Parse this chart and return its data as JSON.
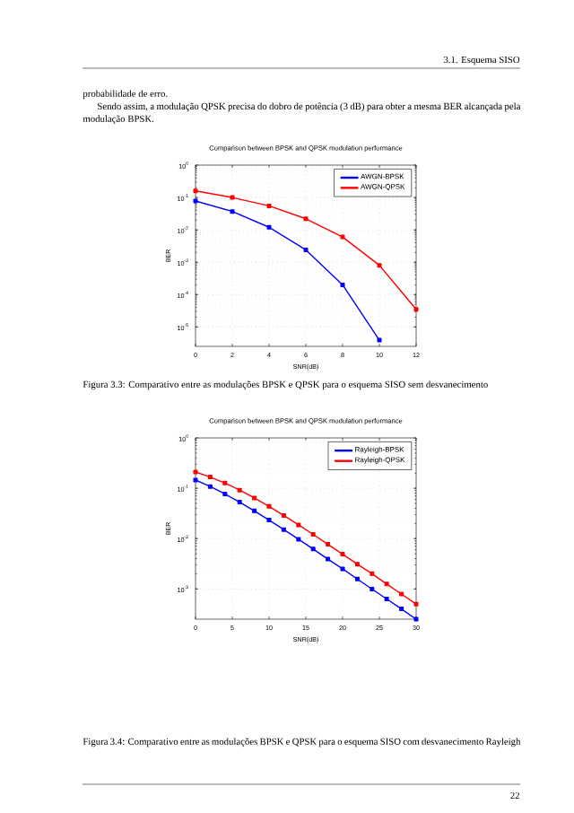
{
  "chart_data": [
    {
      "type": "line",
      "title": "Comparison between BPSK and QPSK modulation performance",
      "xlabel": "SNR(dB)",
      "ylabel": "BER",
      "annotations": [
        "3.1. Esquema SISO",
        "probabilidade de erro.",
        "Sendo assim, a modulação QPSK precisa do dobro de potência (3 dB) para obter a mesma BER alcançada pela modulação BPSK.",
        "Figura 3.3: Comparativo entre as modulações BPSK e QPSK para o esquema SISO sem desvanecimento"
      ],
      "x": [
        0,
        2,
        4,
        6,
        8,
        10,
        12
      ],
      "series": [
        {
          "name": "AWGN-BPSK",
          "color": "#0000ff",
          "x": [
            0,
            2,
            4,
            6,
            8,
            10
          ],
          "values": [
            0.078,
            0.037,
            0.012,
            0.0024,
            0.0002,
            3.9e-06
          ]
        },
        {
          "name": "AWGN-QPSK",
          "color": "#ff0000",
          "values": [
            0.16,
            0.1,
            0.055,
            0.022,
            0.006,
            0.0008,
            3.5e-05
          ]
        }
      ],
      "log": "y",
      "xlim": [
        0,
        12
      ],
      "xticks": [
        0,
        2,
        4,
        6,
        8,
        10,
        12
      ],
      "ylim": [
        2.5e-06,
        1
      ],
      "yticks": [
        {
          "value": 1e-05,
          "label": "10$^{-5}$"
        },
        {
          "value": 0.0001,
          "label": "10$^{-4}$"
        },
        {
          "value": 0.001,
          "label": "10$^{-3}$"
        },
        {
          "value": 0.01,
          "label": "10$^{-2}$"
        },
        {
          "value": 0.1,
          "label": "10$^{-1}$"
        },
        {
          "value": 1,
          "label": "10$^{0}$"
        }
      ],
      "grid": true,
      "legend": "top right",
      "marker": "square",
      "line_style": "solid"
    },
    {
      "type": "line",
      "title": "Comparison between BPSK and QPSK modulation performance",
      "xlabel": "SNR(dB)",
      "ylabel": "BER",
      "annotations": [
        "Figura 3.4: Comparativo entre as modulações BPSK e QPSK para o esquema SISO com desvanecimento Rayleigh",
        "22"
      ],
      "x": [
        0,
        2,
        4,
        6,
        8,
        10,
        12,
        14,
        16,
        18,
        20,
        22,
        24,
        26,
        28,
        30
      ],
      "series": [
        {
          "name": "Rayleigh-BPSK",
          "color": "#0000ff",
          "values": [
            0.146,
            0.108,
            0.077,
            0.053,
            0.0355,
            0.0233,
            0.0151,
            0.0097,
            0.0062,
            0.0039,
            0.0025,
            0.00157,
            0.00099,
            0.00063,
            0.0004,
            0.00025
          ]
        },
        {
          "name": "Rayleigh-QPSK",
          "color": "#ff0000",
          "values": [
            0.21,
            0.167,
            0.127,
            0.092,
            0.064,
            0.0435,
            0.0288,
            0.0187,
            0.0121,
            0.0077,
            0.0049,
            0.0031,
            0.002,
            0.00125,
            0.00079,
            0.0005
          ]
        }
      ],
      "log": "y",
      "xlim": [
        0,
        30
      ],
      "xticks": [
        0,
        5,
        10,
        15,
        20,
        25,
        30
      ],
      "ylim": [
        0.00025,
        1
      ],
      "yticks": [
        {
          "value": 0.001,
          "label": "10$^{-3}$"
        },
        {
          "value": 0.01,
          "label": "10$^{-2}$"
        },
        {
          "value": 0.1,
          "label": "10$^{-1}$"
        },
        {
          "value": 1,
          "label": "10$^{0}$"
        }
      ],
      "grid": true,
      "legend": "top right",
      "marker": "square",
      "line_style": "solid"
    }
  ]
}
